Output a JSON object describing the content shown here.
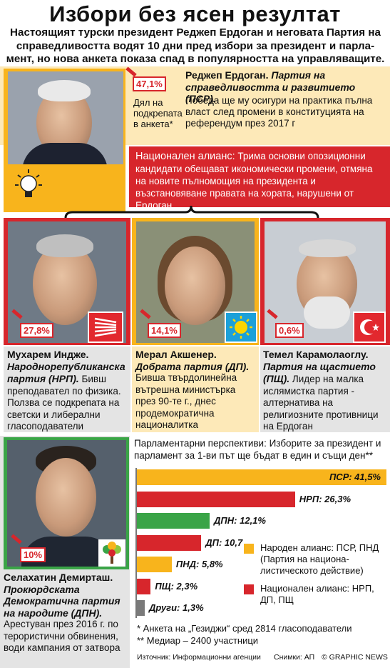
{
  "title": "Избори без ясен резултат",
  "subtitle": "Настоящият турски президент Реджеп Ердоган и неговата Партия на справедливостта водят 10 дни пред избори за президент и парла-мент, но нова анкета показа спад в популярността на управляващите.",
  "erdogan": {
    "pct": "47,1%",
    "share_caption": "Дял на подкрепата в анкета*",
    "name": "Реджеп Ердоган.",
    "party": "Партия на справедливостта и развитието (ПСР).",
    "desc": "Победа ще му осигури на практика пълна власт след промени в конституцията на референдум през 2017 г"
  },
  "alliance": {
    "label": "Национален алианс:",
    "desc": "Трима основни опозиционни кандидати обещават икономически промени, отмяна на новите пълномощия на президента и възстановяване правата на хората, нарушени от Ердоган"
  },
  "candidates": [
    {
      "pct": "27,8%",
      "name": "Мухарем Индже.",
      "party": "Народнорепубликанска партия (НРП).",
      "desc": "Бивш преподавател по физика. Ползва се подкрепата на светски и либерални гласоподаватели"
    },
    {
      "pct": "14,1%",
      "name": "Мерал Акшенер.",
      "party": "Добрата партия (ДП).",
      "desc": "Бивша твърдолинейна вътрешна министърка през 90-те г., днес продемократична националитка"
    },
    {
      "pct": "0,6%",
      "name": "Темел Карамолаоглу.",
      "party": "Партия на щастието (ПЩ).",
      "desc": "Лидер на малка ислямистка партия - алтернатива на религиозните противници на Ердоган"
    }
  ],
  "demirtas": {
    "pct": "10%",
    "name": "Селахатин Демирташ.",
    "party": "Прокюрдската Демократична партия на народите (ДПН).",
    "desc": "Арестуван през 2016 г. по терористични обвинения, води кампания от затвора"
  },
  "chart_heading": "Парламентарни перспективи: Изборите за президент и парламент за 1-ви път ще бъдат в един и същи ден**",
  "colors": {
    "orange": "#f8b41c",
    "red": "#d7262c",
    "green": "#3aa447",
    "grey": "#7a7a7a",
    "bg_yellow": "#fde9b8",
    "bg_grey": "#e4e4e4"
  },
  "chart_data": {
    "type": "bar",
    "orientation": "horizontal",
    "categories": [
      "ПСР",
      "НРП",
      "ДПН",
      "ДП",
      "ПНД",
      "ПЩ",
      "Други"
    ],
    "values": [
      41.5,
      26.3,
      12.1,
      10.7,
      5.8,
      2.3,
      1.3
    ],
    "value_labels": [
      "ПСР: 41,5%",
      "НРП: 26,3%",
      "ДПН: 12,1%",
      "ДП: 10,7",
      "ПНД: 5,8%",
      "ПЩ: 2,3%",
      "Други: 1,3%"
    ],
    "bar_colors": [
      "#f8b41c",
      "#d7262c",
      "#3aa447",
      "#d7262c",
      "#f8b41c",
      "#d7262c",
      "#7a7a7a"
    ],
    "xlim": [
      0,
      41.5
    ],
    "legend": [
      {
        "color": "#f8b41c",
        "label": "Народен алианс: ПСР, ПНД (Партия на национа-листическото действие)"
      },
      {
        "color": "#d7262c",
        "label": "Национален алианс: НРП, ДП, ПЩ"
      }
    ]
  },
  "footnotes": {
    "note1": "* Анкета на „Гезиджи“ сред 2814 гласоподаватели",
    "note2": "** Медиар – 2400 участници"
  },
  "credits": {
    "source": "Източник: Информационни агенции",
    "photos": "Снимки: АП",
    "agency": "© GRAPHIC NEWS"
  }
}
